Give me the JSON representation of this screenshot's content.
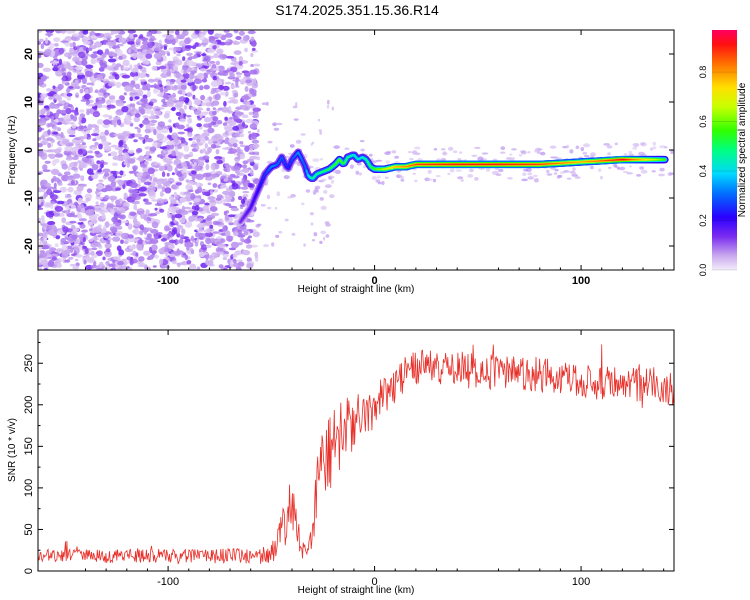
{
  "title": "S174.2025.351.15.36.R14",
  "spectrogram": {
    "xlabel": "Height of straight line (km)",
    "ylabel": "Frequency (Hz)",
    "xlim": [
      -163,
      145
    ],
    "ylim": [
      -25,
      25
    ],
    "x_ticks": [
      "-100",
      "0",
      "100"
    ],
    "x_tick_values": [
      -100,
      0,
      100
    ],
    "y_ticks": [
      "-20",
      "-10",
      "0",
      "10",
      "20"
    ],
    "y_tick_values": [
      -20,
      -10,
      0,
      10,
      20
    ],
    "colorbar": {
      "label": "Normalized spectral amplitude",
      "ticks": [
        "0.0",
        "0.2",
        "0.4",
        "0.6",
        "0.8"
      ],
      "tick_values": [
        0.0,
        0.2,
        0.4,
        0.6,
        0.8
      ],
      "range": [
        0,
        0.97
      ]
    },
    "noise_region_end_km": -60
  },
  "snr": {
    "xlabel": "Height of straight line (km)",
    "ylabel": "SNR (10 * v/v)",
    "xlim": [
      -163,
      145
    ],
    "ylim": [
      0,
      290
    ],
    "x_ticks": [
      "-100",
      "0",
      "100"
    ],
    "x_tick_values": [
      -100,
      0,
      100
    ],
    "y_ticks": [
      "0",
      "50",
      "100",
      "150",
      "200",
      "250"
    ],
    "y_tick_values": [
      0,
      50,
      100,
      150,
      200,
      250
    ],
    "line_color": "#e8302a"
  },
  "chart_data": [
    {
      "type": "heatmap",
      "title": "S174.2025.351.15.36.R14",
      "xlabel": "Height of straight line (km)",
      "ylabel": "Frequency (Hz)",
      "xlim": [
        -163,
        145
      ],
      "ylim": [
        -25,
        25
      ],
      "colorbar_label": "Normalized spectral amplitude",
      "colorbar_range": [
        0,
        0.97
      ],
      "ridge": {
        "x": [
          -65,
          -60,
          -57,
          -55,
          -53,
          -50,
          -47,
          -45,
          -42,
          -40,
          -37,
          -34,
          -32,
          -30,
          -28,
          -25,
          -22,
          -19,
          -17,
          -15,
          -13,
          -10,
          -8,
          -6,
          -4,
          -2,
          0,
          5,
          10,
          15,
          20,
          40,
          60,
          80,
          100,
          120,
          140
        ],
        "freq": [
          -15,
          -12,
          -9,
          -7,
          -5,
          -3.5,
          -3,
          -1.5,
          -4,
          -2,
          -0.5,
          -3,
          -5.5,
          -6,
          -5,
          -4.5,
          -4,
          -3,
          -2,
          -3,
          -1.5,
          -1,
          -2,
          -1.5,
          -2,
          -3.5,
          -4,
          -4,
          -3.5,
          -3.5,
          -3,
          -3,
          -3,
          -3,
          -2.5,
          -2,
          -2
        ],
        "amplitude": [
          0.15,
          0.2,
          0.22,
          0.25,
          0.28,
          0.35,
          0.32,
          0.3,
          0.25,
          0.3,
          0.35,
          0.3,
          0.45,
          0.5,
          0.5,
          0.52,
          0.55,
          0.58,
          0.6,
          0.55,
          0.5,
          0.45,
          0.45,
          0.45,
          0.5,
          0.55,
          0.6,
          0.7,
          0.8,
          0.85,
          0.9,
          0.93,
          0.93,
          0.9,
          0.8,
          0.95,
          0.6
        ]
      }
    },
    {
      "type": "line",
      "title": "",
      "xlabel": "Height of straight line (km)",
      "ylabel": "SNR (10 * v/v)",
      "xlim": [
        -163,
        145
      ],
      "ylim": [
        0,
        290
      ],
      "envelope": {
        "x": [
          -163,
          -60,
          -50,
          -45,
          -40,
          -38,
          -35,
          -32,
          -28,
          -25,
          -20,
          -15,
          -10,
          -5,
          0,
          5,
          10,
          15,
          20,
          25,
          30,
          50,
          70,
          90,
          110,
          130,
          145
        ],
        "mean": [
          18,
          18,
          20,
          45,
          80,
          50,
          25,
          25,
          90,
          140,
          150,
          170,
          175,
          190,
          200,
          210,
          225,
          240,
          245,
          245,
          245,
          240,
          238,
          232,
          228,
          225,
          220
        ],
        "spread": [
          8,
          9,
          12,
          25,
          30,
          25,
          10,
          12,
          40,
          50,
          45,
          40,
          35,
          30,
          28,
          25,
          22,
          22,
          22,
          22,
          22,
          22,
          22,
          22,
          22,
          22,
          22
        ]
      }
    }
  ]
}
